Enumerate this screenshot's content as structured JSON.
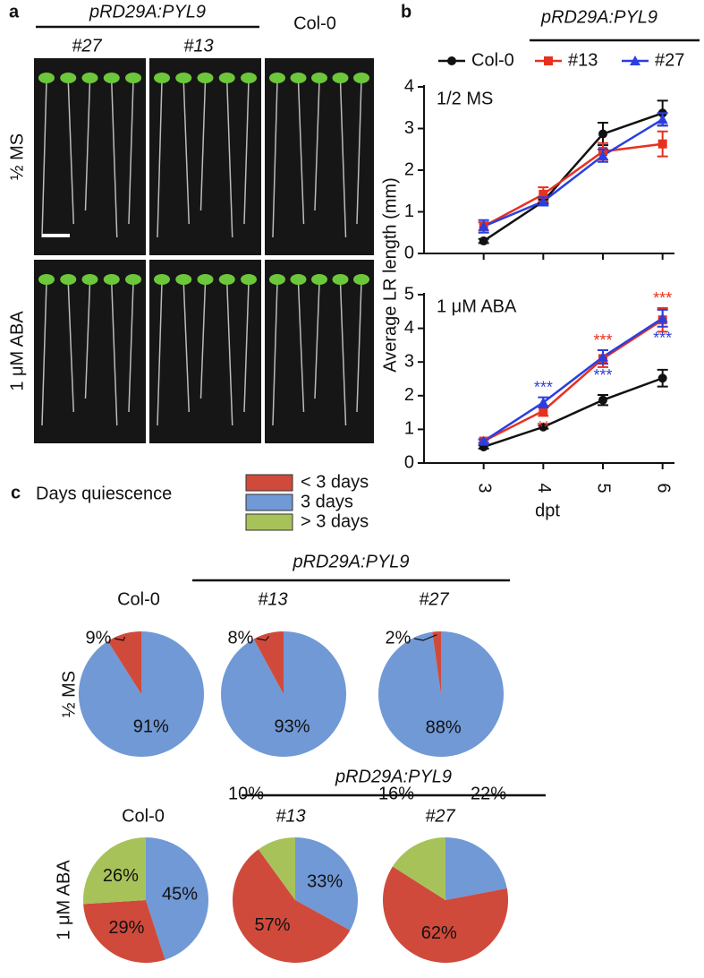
{
  "panel_labels": [
    "a",
    "b",
    "c"
  ],
  "photo_panel": {
    "group_label": "pRD29A:PYL9",
    "columns": [
      "#27",
      "#13",
      "Col-0"
    ],
    "rows": [
      "½ MS",
      "1 μM ABA"
    ]
  },
  "chart_data": [
    {
      "type": "line",
      "ylabel": "Average LR length (mm)",
      "xlabel": "dpt",
      "legend_group": "pRD29A:PYL9",
      "x": [
        3,
        4,
        5,
        6
      ],
      "xlim": [
        2,
        6.2
      ],
      "xticks": [
        3,
        4,
        5,
        6
      ],
      "series": [
        {
          "name": "Col-0",
          "color": "#111111",
          "marker": "circle"
        },
        {
          "name": "#13",
          "color": "#e8301f",
          "marker": "square"
        },
        {
          "name": "#27",
          "color": "#2a3fe0",
          "marker": "triangle"
        }
      ],
      "panels": [
        {
          "label": "1/2 MS",
          "ylim": [
            0,
            4
          ],
          "yticks": [
            0,
            1,
            2,
            3,
            4
          ],
          "values": [
            [
              0.3,
              1.25,
              2.87,
              3.37
            ],
            [
              0.65,
              1.42,
              2.45,
              2.63
            ],
            [
              0.65,
              1.25,
              2.35,
              3.22
            ]
          ],
          "errors": [
            [
              0.05,
              0.05,
              0.27,
              0.3
            ],
            [
              0.1,
              0.17,
              0.2,
              0.3
            ],
            [
              0.15,
              0.1,
              0.15,
              0.15
            ]
          ]
        },
        {
          "label": "1 μM ABA",
          "ylim": [
            0,
            5
          ],
          "yticks": [
            0,
            1,
            2,
            3,
            4,
            5
          ],
          "values": [
            [
              0.48,
              1.07,
              1.87,
              2.52
            ],
            [
              0.65,
              1.55,
              3.1,
              4.25
            ],
            [
              0.65,
              1.8,
              3.15,
              4.3
            ]
          ],
          "errors": [
            [
              0.05,
              0.05,
              0.15,
              0.25
            ],
            [
              0.05,
              0.15,
              0.25,
              0.35
            ],
            [
              0.05,
              0.15,
              0.2,
              0.25
            ]
          ],
          "significance": [
            [
              null,
              null,
              null,
              null
            ],
            [
              null,
              "**",
              "***",
              "***"
            ],
            [
              null,
              "***",
              "***",
              "***"
            ]
          ]
        }
      ]
    },
    {
      "type": "pie_grid",
      "legend_title": "Days quiescence",
      "categories": [
        "< 3 days",
        "3 days",
        "> 3 days"
      ],
      "colors": [
        "#d04a3c",
        "#7099d6",
        "#a8c25a"
      ],
      "rows": [
        {
          "label": "½ MS",
          "group_label": "pRD29A:PYL9",
          "pies": [
            {
              "title": "Col-0",
              "values": [
                9,
                91,
                null
              ],
              "value_labels": [
                "9%",
                "91%",
                null
              ]
            },
            {
              "title": "#13",
              "values": [
                8,
                93,
                null
              ],
              "value_labels": [
                "8%",
                "93%",
                null
              ]
            },
            {
              "title": "#27",
              "values": [
                2,
                88,
                null
              ],
              "value_labels": [
                "2%",
                "88%",
                null
              ]
            }
          ]
        },
        {
          "label": "1 μM ABA",
          "group_label": "pRD29A:PYL9",
          "pies": [
            {
              "title": "Col-0",
              "values": [
                29,
                45,
                26
              ],
              "value_labels": [
                "29%",
                "45%",
                "26%"
              ]
            },
            {
              "title": "#13",
              "values": [
                57,
                33,
                10
              ],
              "value_labels": [
                "57%",
                "33%",
                "10%"
              ]
            },
            {
              "title": "#27",
              "values": [
                62,
                22,
                16
              ],
              "value_labels": [
                "62%",
                "22%",
                "16%"
              ]
            }
          ]
        }
      ]
    }
  ]
}
